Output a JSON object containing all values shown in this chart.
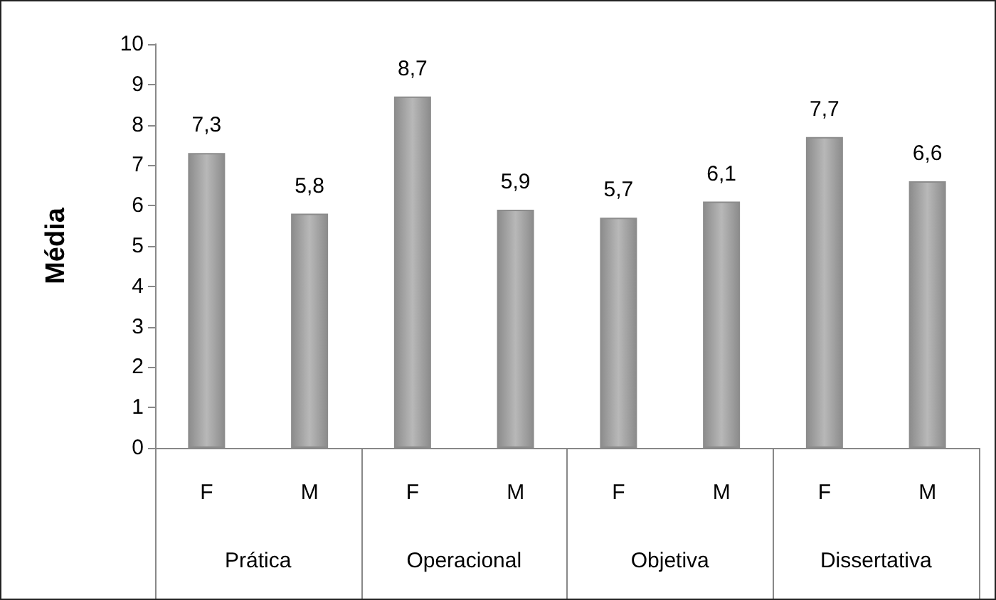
{
  "chart_data": {
    "type": "bar",
    "ylabel": "Média",
    "categories": [
      "F",
      "M",
      "F",
      "M",
      "F",
      "M",
      "F",
      "M"
    ],
    "values": [
      7.3,
      5.8,
      8.7,
      5.9,
      5.7,
      6.1,
      7.7,
      6.6
    ],
    "value_labels": [
      "7,3",
      "5,8",
      "8,7",
      "5,9",
      "5,7",
      "6,1",
      "7,7",
      "6,6"
    ],
    "color": "#8c8c8c",
    "annotations": [
      "Prática",
      "Operacional",
      "Objetiva",
      "Dissertativa"
    ],
    "ylim": [
      0,
      10
    ],
    "yticks": [
      0,
      1,
      2,
      3,
      4,
      5,
      6,
      7,
      8,
      9,
      10
    ],
    "grid": false
  }
}
